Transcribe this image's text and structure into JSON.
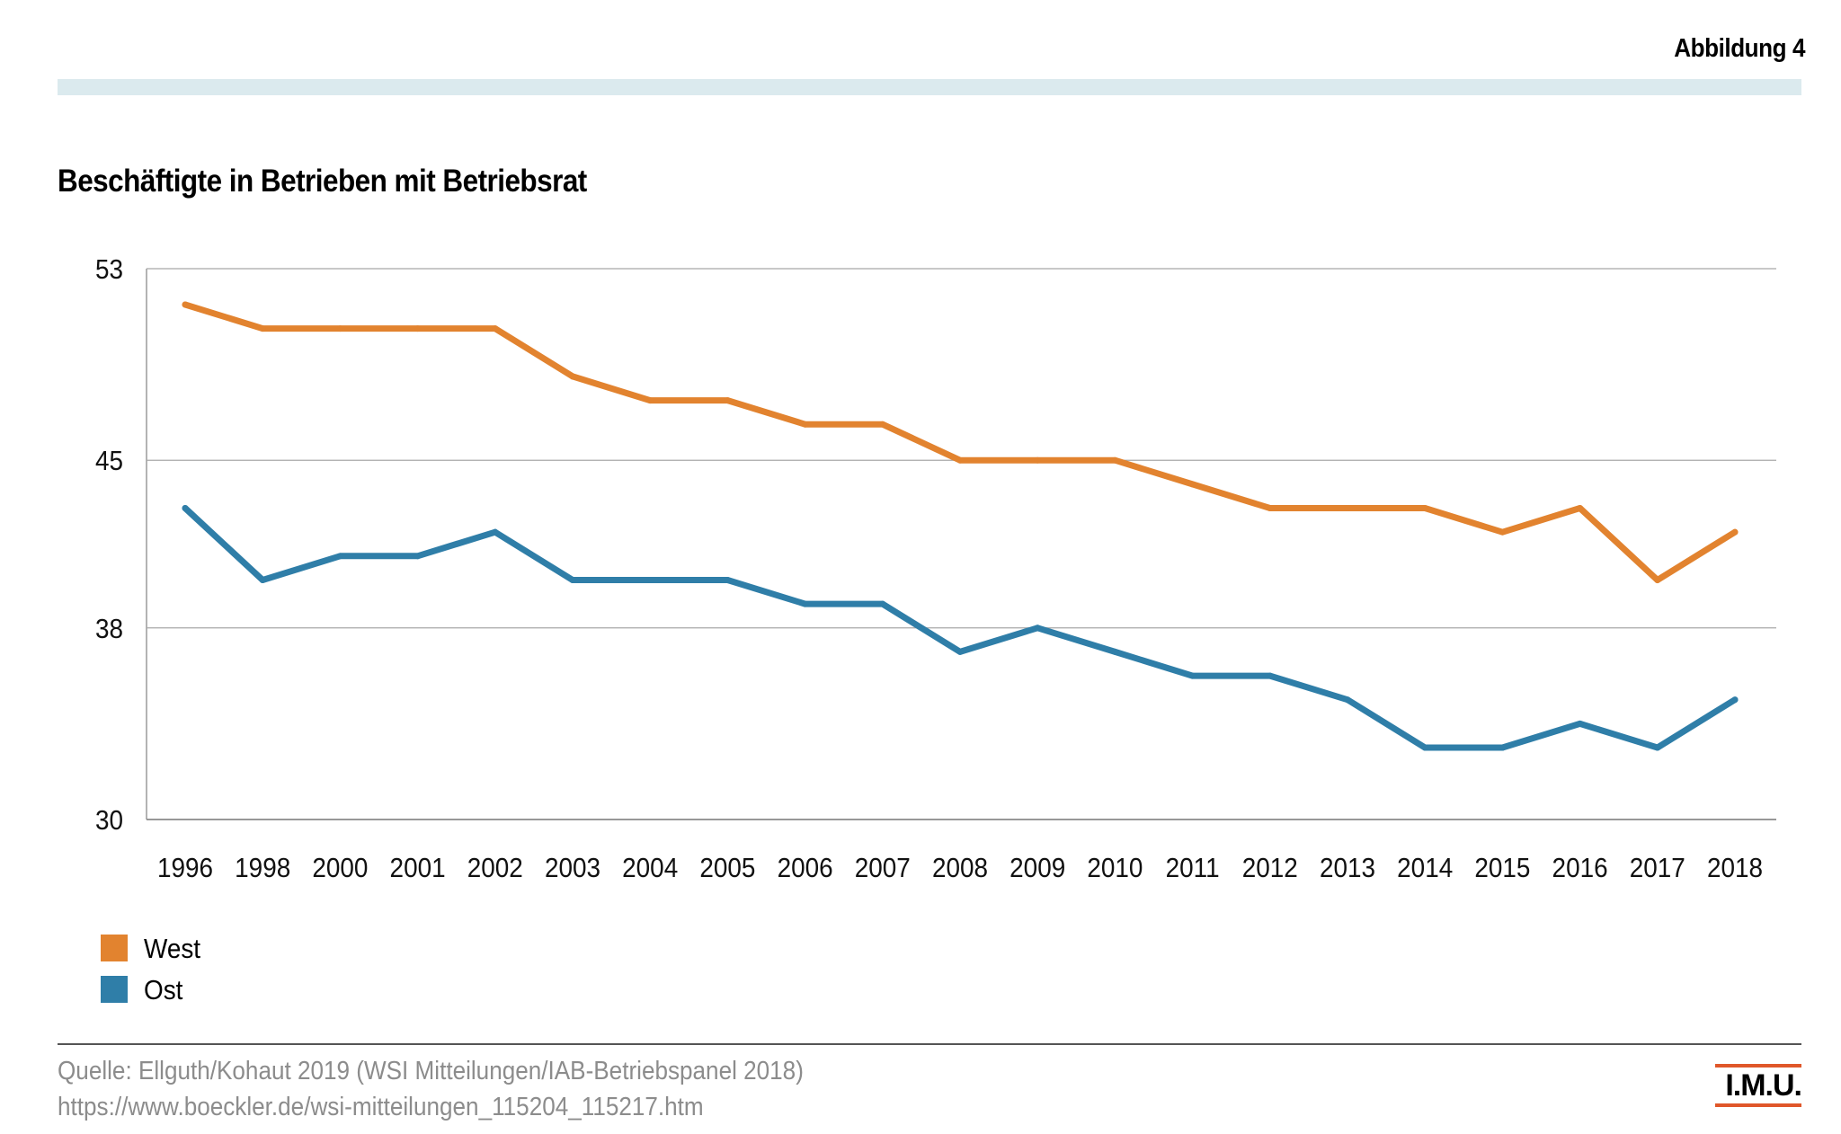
{
  "figure_label": "Abbildung 4",
  "chart_data": {
    "type": "line",
    "title": "Beschäftigte in Betrieben mit Betriebsrat",
    "xlabel": "",
    "ylabel": "",
    "categories": [
      "1996",
      "1998",
      "2000",
      "2001",
      "2002",
      "2003",
      "2004",
      "2005",
      "2006",
      "2007",
      "2008",
      "2009",
      "2010",
      "2011",
      "2012",
      "2013",
      "2014",
      "2015",
      "2016",
      "2017",
      "2018"
    ],
    "series": [
      {
        "name": "West",
        "color": "#e2832f",
        "values": [
          51.5,
          50.5,
          50.5,
          50.5,
          50.5,
          48.5,
          47.5,
          47.5,
          46.5,
          46.5,
          45,
          45,
          45,
          44,
          43,
          43,
          43,
          42,
          43,
          40,
          42
        ]
      },
      {
        "name": "Ost",
        "color": "#2f7ea8",
        "values": [
          43,
          40,
          41,
          41,
          42,
          40,
          40,
          40,
          39,
          39,
          37,
          38,
          37,
          36,
          36,
          35,
          33,
          33,
          34,
          33,
          35
        ]
      }
    ],
    "ylim": [
      30,
      53
    ],
    "yticks": [
      "53",
      "45",
      "38",
      "30"
    ],
    "grid": true,
    "legend_position": "bottom-left"
  },
  "source": {
    "line1": "Quelle: Ellguth/Kohaut 2019 (WSI Mitteilungen/IAB-Betriebspanel 2018)",
    "line2": "https://www.boeckler.de/wsi-mitteilungen_115204_115217.htm"
  },
  "logo_text": "I.M.U."
}
